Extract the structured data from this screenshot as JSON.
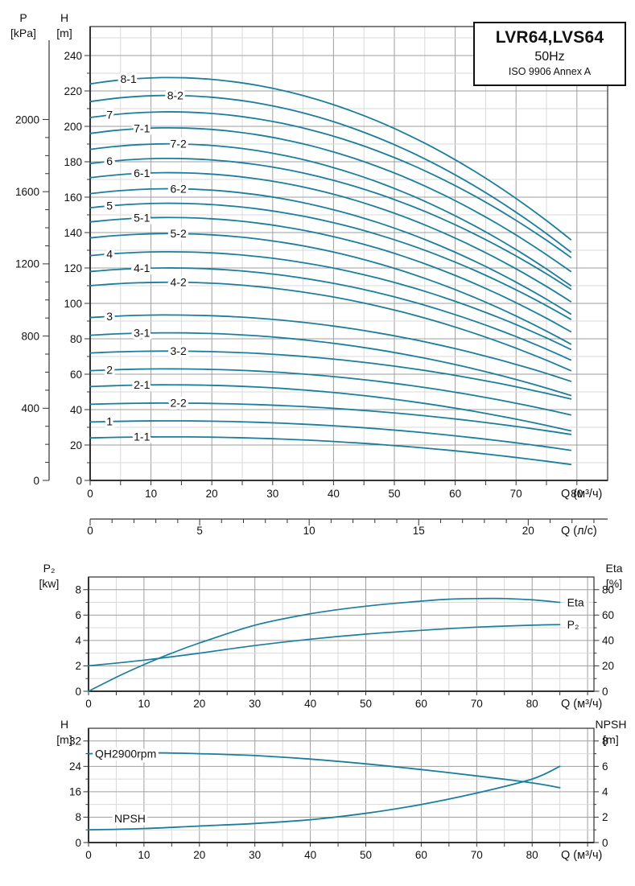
{
  "colors": {
    "curve": "#1b7e9c",
    "grid_minor": "#d9d9d9",
    "grid_major": "#9f9f9f",
    "axis": "#333333",
    "frame": "#4a4a4a",
    "text": "#111111"
  },
  "title_box": {
    "model": "LVR64,LVS64",
    "frequency": "50Hz",
    "standard": "ISO 9906 Annex A"
  },
  "headers": {
    "p_kpa": {
      "line1": "P",
      "line2": "[kPa]"
    },
    "h_m": {
      "line1": "H",
      "line2": "[m]"
    },
    "p2_kw": {
      "line1": "P₂",
      "line2": "[kw]"
    },
    "eta_pct": {
      "line1": "Eta",
      "line2": "[%]"
    },
    "h_m2": {
      "line1": "H",
      "line2": "[m]"
    },
    "npsh_m": {
      "line1": "NPSH",
      "line2": "[m]"
    }
  },
  "chart_data": [
    {
      "type": "line",
      "name": "QH multi-stage performance curves",
      "x_axis": {
        "label": "Q (м³/ч)",
        "min": 0,
        "max": 85,
        "major_ticks": [
          0,
          10,
          20,
          30,
          40,
          50,
          60,
          70,
          80
        ],
        "minor_step": 5
      },
      "x_axis_secondary": {
        "label": "Q (л/с)",
        "major_ticks": [
          0,
          5,
          10,
          15,
          20
        ],
        "minor_step": 1,
        "m3h_per_unit": 3.6
      },
      "y_axis": {
        "label": "H [m]",
        "min": 0,
        "max": 250,
        "major_ticks": [
          0,
          20,
          40,
          60,
          80,
          100,
          120,
          140,
          160,
          180,
          200,
          220,
          240
        ],
        "minor_step": 10
      },
      "y_axis_secondary": {
        "label": "P [kPa]",
        "major_ticks": [
          0,
          400,
          800,
          1200,
          1600,
          2000
        ],
        "minor_step": 100,
        "kpa_per_m": 9.81
      },
      "q_end": 79,
      "peak_q": 13,
      "series": [
        {
          "label": "8-1",
          "h_start": 224,
          "h_end": 136,
          "label_q": 6.3
        },
        {
          "label": "8-2",
          "h_start": 214,
          "h_end": 129,
          "label_q": 14
        },
        {
          "label": "7",
          "h_start": 205,
          "h_end": 126,
          "label_q": 3.2
        },
        {
          "label": "7-1",
          "h_start": 196,
          "h_end": 118,
          "label_q": 8.5
        },
        {
          "label": "7-2",
          "h_start": 187,
          "h_end": 110,
          "label_q": 14.5
        },
        {
          "label": "6",
          "h_start": 179,
          "h_end": 108,
          "label_q": 3.2
        },
        {
          "label": "6-1",
          "h_start": 171,
          "h_end": 101,
          "label_q": 8.5
        },
        {
          "label": "6-2",
          "h_start": 162,
          "h_end": 94,
          "label_q": 14.5
        },
        {
          "label": "5",
          "h_start": 154,
          "h_end": 91,
          "label_q": 3.2
        },
        {
          "label": "5-1",
          "h_start": 146,
          "h_end": 84,
          "label_q": 8.5
        },
        {
          "label": "5-2",
          "h_start": 137,
          "h_end": 77,
          "label_q": 14.5
        },
        {
          "label": "4",
          "h_start": 127,
          "h_end": 74,
          "label_q": 3.2
        },
        {
          "label": "4-1",
          "h_start": 118,
          "h_end": 68,
          "label_q": 8.5
        },
        {
          "label": "4-2",
          "h_start": 110,
          "h_end": 62,
          "label_q": 14.5
        },
        {
          "label": "3",
          "h_start": 92,
          "h_end": 56,
          "label_q": 3.2
        },
        {
          "label": "3-1",
          "h_start": 82,
          "h_end": 48,
          "label_q": 8.5
        },
        {
          "label": "3-2",
          "h_start": 72,
          "h_end": 46,
          "label_q": 14.5
        },
        {
          "label": "2",
          "h_start": 62,
          "h_end": 37,
          "label_q": 3.2
        },
        {
          "label": "2-1",
          "h_start": 53,
          "h_end": 28,
          "label_q": 8.5
        },
        {
          "label": "2-2",
          "h_start": 43,
          "h_end": 26,
          "label_q": 14.5
        },
        {
          "label": "1",
          "h_start": 33,
          "h_end": 17,
          "label_q": 3.2
        },
        {
          "label": "1-1",
          "h_start": 24,
          "h_end": 9,
          "label_q": 8.5
        }
      ]
    },
    {
      "type": "line",
      "name": "Shaft power and efficiency",
      "x_axis": {
        "label": "Q (м³/ч)",
        "min": 0,
        "max": 91,
        "major_ticks": [
          0,
          10,
          20,
          30,
          40,
          50,
          60,
          70,
          80
        ],
        "minor_step": 5
      },
      "y_left": {
        "label": "P₂ [kw]",
        "min": 0,
        "max": 9,
        "major_ticks": [
          0,
          2,
          4,
          6,
          8
        ],
        "minor_step": 1
      },
      "y_right": {
        "label": "Eta [%]",
        "min": 0,
        "max": 90,
        "major_ticks": [
          0,
          20,
          40,
          60,
          80
        ],
        "minor_step": 10
      },
      "series": [
        {
          "label": "Eta",
          "axis": "right",
          "points": [
            [
              0,
              0
            ],
            [
              5,
              11
            ],
            [
              10,
              21
            ],
            [
              15,
              30
            ],
            [
              20,
              38
            ],
            [
              30,
              52
            ],
            [
              40,
              61
            ],
            [
              50,
              67
            ],
            [
              60,
              71
            ],
            [
              65,
              72.5
            ],
            [
              70,
              73
            ],
            [
              75,
              73
            ],
            [
              80,
              72
            ],
            [
              85,
              70
            ]
          ]
        },
        {
          "label": "P₂",
          "axis": "left",
          "points": [
            [
              0,
              2.0
            ],
            [
              10,
              2.45
            ],
            [
              20,
              3.0
            ],
            [
              30,
              3.6
            ],
            [
              40,
              4.1
            ],
            [
              50,
              4.5
            ],
            [
              60,
              4.8
            ],
            [
              70,
              5.05
            ],
            [
              80,
              5.2
            ],
            [
              85,
              5.25
            ]
          ]
        }
      ]
    },
    {
      "type": "line",
      "name": "Single stage QH at 2900 rpm and NPSH",
      "x_axis": {
        "label": "Q (м³/ч)",
        "min": 0,
        "max": 91,
        "major_ticks": [
          0,
          10,
          20,
          30,
          40,
          50,
          60,
          70,
          80
        ],
        "minor_step": 5
      },
      "y_left": {
        "label": "H [m]",
        "min": 0,
        "max": 36,
        "major_ticks": [
          0,
          8,
          16,
          24,
          32
        ],
        "minor_step": 4
      },
      "y_right": {
        "label": "NPSH [m]",
        "min": 0,
        "max": 9,
        "major_ticks": [
          0,
          2,
          4,
          6,
          8
        ],
        "minor_step": 1
      },
      "series": [
        {
          "label": "QH2900rpm",
          "axis": "left",
          "points": [
            [
              0,
              28
            ],
            [
              10,
              28.3
            ],
            [
              20,
              28
            ],
            [
              30,
              27.4
            ],
            [
              40,
              26.3
            ],
            [
              50,
              24.8
            ],
            [
              60,
              23
            ],
            [
              70,
              21
            ],
            [
              80,
              18.8
            ],
            [
              85,
              17.3
            ]
          ]
        },
        {
          "label": "NPSH",
          "axis": "right",
          "points": [
            [
              0,
              1.0
            ],
            [
              10,
              1.1
            ],
            [
              20,
              1.3
            ],
            [
              30,
              1.5
            ],
            [
              40,
              1.8
            ],
            [
              50,
              2.3
            ],
            [
              60,
              3.0
            ],
            [
              70,
              3.9
            ],
            [
              80,
              5.0
            ],
            [
              85,
              6.0
            ]
          ]
        }
      ]
    }
  ]
}
